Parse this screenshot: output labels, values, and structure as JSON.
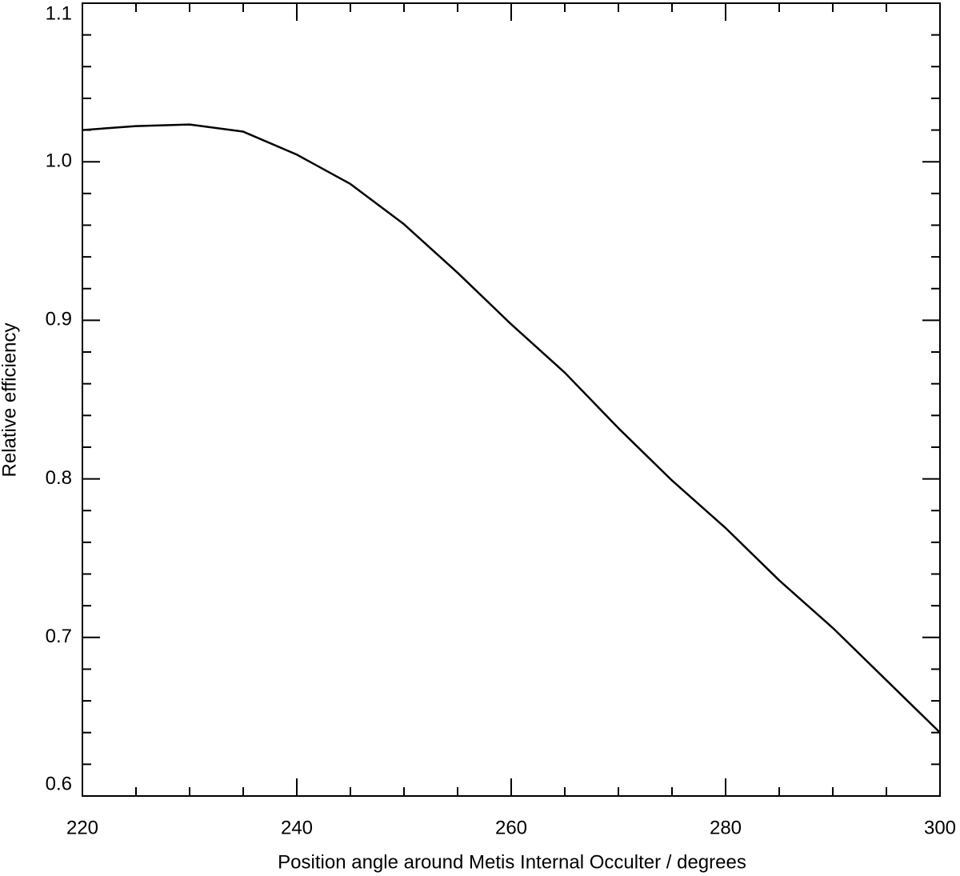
{
  "chart_data": {
    "type": "line",
    "x_label": "Position angle around Metis Internal Occulter / degrees",
    "y_label": "Relative efficiency",
    "x": [
      220,
      225,
      230,
      235,
      240,
      245,
      250,
      255,
      260,
      265,
      270,
      275,
      280,
      285,
      290,
      295,
      300
    ],
    "series": [
      {
        "color": "#000000",
        "values": [
          1.02,
          1.0225,
          1.0235,
          1.019,
          1.0045,
          0.986,
          0.9606,
          0.93,
          0.8975,
          0.867,
          0.832,
          0.799,
          0.769,
          0.736,
          0.706,
          0.673,
          0.64
        ]
      }
    ],
    "xlim": [
      220,
      300
    ],
    "xticks": [
      220,
      240,
      260,
      280,
      300
    ],
    "xminorticks": [
      225,
      230,
      235,
      245,
      250,
      255,
      265,
      270,
      275,
      285,
      290,
      295
    ],
    "ylim": [
      0.6,
      1.1
    ],
    "yticks": [
      {
        "value": 0.6,
        "label": "0.6"
      },
      {
        "value": 0.7,
        "label": "0.7"
      },
      {
        "value": 0.8,
        "label": "0.8"
      },
      {
        "value": 0.9,
        "label": "0.9"
      },
      {
        "value": 1.0,
        "label": "1.0"
      },
      {
        "value": 1.1,
        "label": "1.1"
      }
    ],
    "yminorticks": [
      0.62,
      0.64,
      0.66,
      0.68,
      0.72,
      0.74,
      0.76,
      0.78,
      0.82,
      0.84,
      0.86,
      0.88,
      0.92,
      0.94,
      0.96,
      0.98,
      1.02,
      1.04,
      1.06,
      1.08
    ],
    "grid": false
  }
}
